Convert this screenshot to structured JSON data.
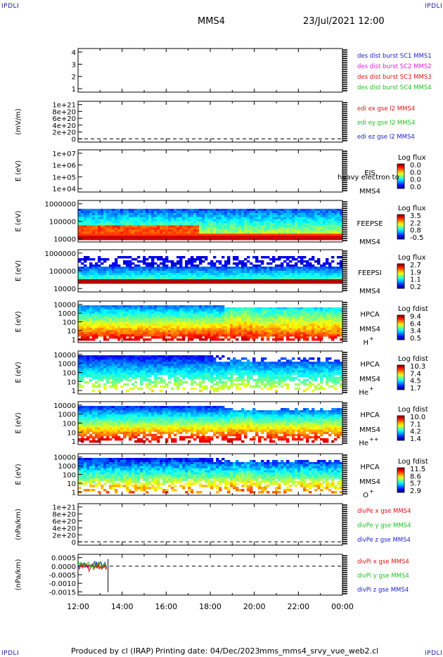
{
  "header": {
    "corner_left_top": "IPDLI",
    "corner_right_top": "IPDLI",
    "corner_left_bottom": "IPDLI",
    "corner_right_bottom": "IPDLI",
    "spacecraft": "MMS4",
    "datetime": "23/Jul/2021 12:00"
  },
  "footer": {
    "produced_by": "Produced by cl (IRAP)",
    "printing_date": "Printing date: 04/Dec/2023",
    "file_name": "mms_mms4_srvy_vue_web2.cl"
  },
  "colors": {
    "blue": "#1c1cc8",
    "magenta": "#e020e0",
    "red": "#e01010",
    "green": "#20c020"
  },
  "chart_data": [
    {
      "type": "line",
      "ylabel": "",
      "yticks": [
        "4",
        "3",
        "2",
        "1"
      ],
      "legend": [
        {
          "text": "des dist burst SC1 MMS1",
          "color": "#1c1cc8"
        },
        {
          "text": "des dist burst SC2 MMS2",
          "color": "#e020e0"
        },
        {
          "text": "des dist burst SC3 MMS3",
          "color": "#e01010"
        },
        {
          "text": "des dist burst SC4 MMS4",
          "color": "#20c020"
        }
      ]
    },
    {
      "type": "line",
      "ylabel": "(mV/m)",
      "yticks": [
        "1e+21",
        "8e+20",
        "6e+20",
        "4e+20",
        "2e+20",
        "0"
      ],
      "legend": [
        {
          "text": "edi ex gse l2 MMS4",
          "color": "#e01010"
        },
        {
          "text": "edi ey gse l2 MMS4",
          "color": "#20c020"
        },
        {
          "text": "edi ez gse l2 MMS4",
          "color": "#1c1cc8"
        }
      ]
    },
    {
      "type": "heatmap",
      "ylabel": "E (eV)",
      "yticks": [
        "1e+07",
        "1e+06",
        "1e+05",
        "1e+04"
      ],
      "instrument": "EIS",
      "species": "heavy electron to",
      "spacecraft": "MMS4",
      "colorbar_title": "Log flux",
      "colorbar_ticks": [
        "0.0",
        "0.0",
        "0.0",
        "0.0"
      ]
    },
    {
      "type": "heatmap",
      "ylabel": "E (eV)",
      "yticks": [
        "1000000",
        "100000",
        "10000"
      ],
      "instrument": "FEEPSE",
      "spacecraft": "MMS4",
      "colorbar_title": "Log flux",
      "colorbar_ticks": [
        "3.5",
        "2.2",
        "0.8",
        "-0.5"
      ]
    },
    {
      "type": "heatmap",
      "ylabel": "E (eV)",
      "yticks": [
        "1000000",
        "100000",
        "10000"
      ],
      "instrument": "FEEPSI",
      "spacecraft": "MMS4",
      "colorbar_title": "Log flux",
      "colorbar_ticks": [
        "2.7",
        "1.9",
        "1.1",
        "0.2"
      ]
    },
    {
      "type": "heatmap",
      "ylabel": "E (eV)",
      "yticks": [
        "10000",
        "1000",
        "100",
        "10",
        "1"
      ],
      "instrument": "HPCA",
      "spacecraft": "MMS4",
      "ion": "H",
      "ion_charge": "+",
      "colorbar_title": "Log fdist",
      "colorbar_ticks": [
        "9.4",
        "6.4",
        "3.4",
        "0.5"
      ]
    },
    {
      "type": "heatmap",
      "ylabel": "E (eV)",
      "yticks": [
        "10000",
        "1000",
        "100",
        "10",
        "1"
      ],
      "instrument": "HPCA",
      "spacecraft": "MMS4",
      "ion": "He",
      "ion_charge": "+",
      "colorbar_title": "Log fdist",
      "colorbar_ticks": [
        "10.3",
        "7.4",
        "4.5",
        "1.7"
      ]
    },
    {
      "type": "heatmap",
      "ylabel": "E (eV)",
      "yticks": [
        "10000",
        "1000",
        "100",
        "10",
        "1"
      ],
      "instrument": "HPCA",
      "spacecraft": "MMS4",
      "ion": "He",
      "ion_charge": "++",
      "colorbar_title": "Log fdist",
      "colorbar_ticks": [
        "10.0",
        "7.1",
        "4.2",
        "1.4"
      ]
    },
    {
      "type": "heatmap",
      "ylabel": "E (eV)",
      "yticks": [
        "10000",
        "1000",
        "100",
        "10",
        "1"
      ],
      "instrument": "HPCA",
      "spacecraft": "MMS4",
      "ion": "O",
      "ion_charge": "+",
      "colorbar_title": "Log fdist",
      "colorbar_ticks": [
        "11.5",
        "8.6",
        "5.7",
        "2.9"
      ]
    },
    {
      "type": "line",
      "ylabel": "(nPa/km)",
      "yticks": [
        "1e+21",
        "8e+20",
        "6e+20",
        "4e+20",
        "2e+20",
        "0"
      ],
      "legend": [
        {
          "text": "divPe x gse MMS4",
          "color": "#e01010"
        },
        {
          "text": "divPe y gse MMS4",
          "color": "#20c020"
        },
        {
          "text": "divPe z gse MMS4",
          "color": "#1c1cc8"
        }
      ]
    },
    {
      "type": "line",
      "ylabel": "(nPa/km)",
      "yticks": [
        "0.0005",
        "0.0000",
        "-0.0005",
        "-0.0010",
        "-0.0015"
      ],
      "legend": [
        {
          "text": "divPi x gse MMS4",
          "color": "#e01010"
        },
        {
          "text": "divPi y gse MMS4",
          "color": "#20c020"
        },
        {
          "text": "divPi z gse MMS4",
          "color": "#1c1cc8"
        }
      ]
    }
  ],
  "xaxis": {
    "ticks": [
      "12:00",
      "14:00",
      "16:00",
      "18:00",
      "20:00",
      "22:00",
      "00:00"
    ]
  }
}
